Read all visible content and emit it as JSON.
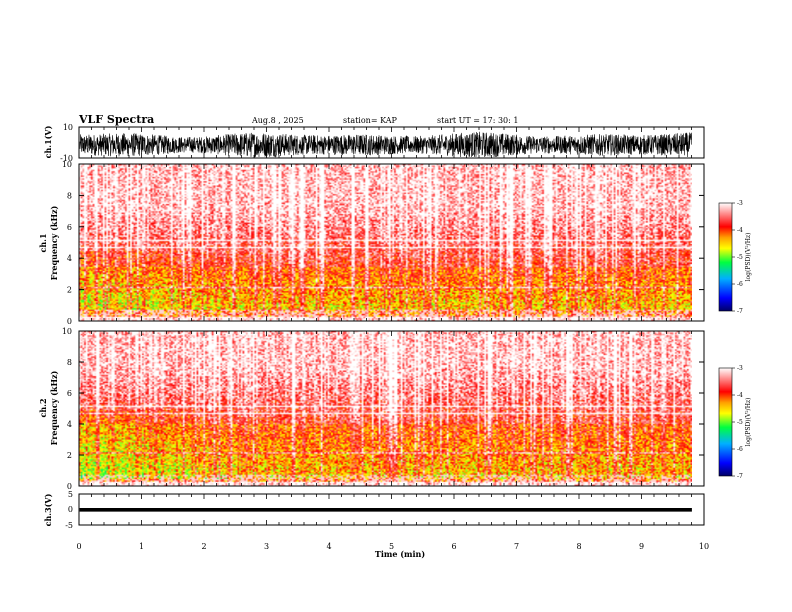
{
  "chart_data": {
    "type": "heatmap",
    "title": "VLF Spectra",
    "header": {
      "date": "Aug.8  , 2025",
      "station": "station= KAP",
      "start": "start  UT  =   17: 30: 1"
    },
    "xlabel": "Time  (min)",
    "xlim": [
      0,
      10
    ],
    "x_ticks": [
      "0",
      "1",
      "2",
      "3",
      "4",
      "5",
      "6",
      "7",
      "8",
      "9",
      "10"
    ],
    "data_end_min": 9.8,
    "panels": [
      {
        "id": "ch1-waveform",
        "type": "line",
        "ylabel": "ch.1(V)",
        "ylim": [
          -10,
          10
        ],
        "y_ticks": [
          "10",
          "-10"
        ],
        "description_values": {
          "mean": -1.5,
          "amplitude": 8.5
        }
      },
      {
        "id": "ch1-spectrogram",
        "type": "heatmap",
        "ylabel": [
          "ch.1",
          "Frequency  (kHz)"
        ],
        "ylim": [
          0,
          10
        ],
        "y_ticks": [
          "0",
          "2",
          "4",
          "6",
          "8",
          "10"
        ],
        "dominant_band_khz": [
          0.8,
          3.5
        ]
      },
      {
        "id": "ch2-spectrogram",
        "type": "heatmap",
        "ylabel": [
          "ch.2",
          "Frequency  (kHz)"
        ],
        "ylim": [
          0,
          10
        ],
        "y_ticks": [
          "0",
          "2",
          "4",
          "6",
          "8",
          "10"
        ],
        "dominant_band_khz": [
          0.5,
          4.0
        ]
      },
      {
        "id": "ch3-waveform",
        "type": "line",
        "ylabel": "ch.3(V)",
        "ylim": [
          -5,
          5
        ],
        "y_ticks": [
          "5",
          "0",
          "-5"
        ],
        "description_values": {
          "mean": 0,
          "amplitude": 0.35
        }
      }
    ],
    "colorbar": {
      "label": "log(PSD)(V²/Hz)",
      "range": [
        -7,
        -3
      ],
      "ticks": [
        "-3",
        "-4",
        "-5",
        "-6",
        "-7"
      ],
      "colors": [
        "#000066",
        "#0000ff",
        "#00b0ff",
        "#00ff40",
        "#ffff00",
        "#ffa000",
        "#ff0000",
        "#ffffff"
      ]
    }
  }
}
